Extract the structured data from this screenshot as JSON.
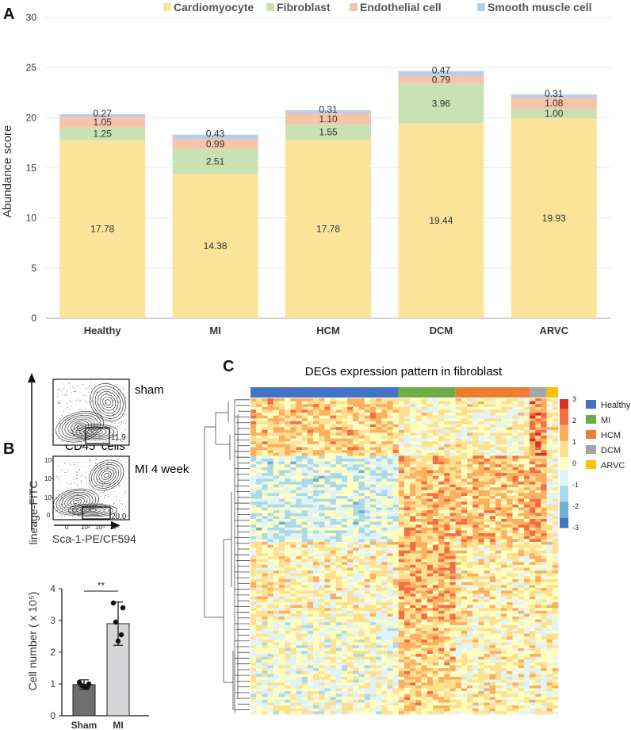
{
  "panels": {
    "a": "A",
    "b": "B",
    "c": "C"
  },
  "chart_data": [
    {
      "type": "bar",
      "stacked": true,
      "ylabel": "Abundance score",
      "ylim": [
        0,
        30
      ],
      "yticks": [
        0,
        5,
        10,
        15,
        20,
        25,
        30
      ],
      "grid": true,
      "legend_position": "top",
      "categories": [
        "Healthy",
        "MI",
        "HCM",
        "DCM",
        "ARVC"
      ],
      "series": [
        {
          "name": "Cardiomyocyte",
          "color": "#fbe49a",
          "values": [
            17.78,
            14.38,
            17.78,
            19.44,
            19.93
          ],
          "labels": [
            "17.78",
            "14.38",
            "17.78",
            "19.44",
            "19.93"
          ]
        },
        {
          "name": "Fibroblast",
          "color": "#c8e2b3",
          "values": [
            1.25,
            2.51,
            1.55,
            3.96,
            1.0
          ],
          "labels": [
            "1.25",
            "2.51",
            "1.55",
            "3.96",
            "1.00"
          ]
        },
        {
          "name": "Endothelial cell",
          "color": "#f6c4a8",
          "values": [
            1.05,
            0.99,
            1.1,
            0.79,
            1.08
          ],
          "labels": [
            "1.05",
            "0.99",
            "1.10",
            "0.79",
            "1.08"
          ]
        },
        {
          "name": "Smooth muscle cell",
          "color": "#b7cfe9",
          "values": [
            0.27,
            0.43,
            0.31,
            0.47,
            0.31
          ],
          "labels": [
            "0.27",
            "0.43",
            "0.31",
            "0.47",
            "0.31"
          ]
        }
      ]
    },
    {
      "type": "bar",
      "ylabel": "Cell number ( x 10⁵)",
      "ylim": [
        0,
        4
      ],
      "yticks": [
        0,
        1,
        2,
        3,
        4
      ],
      "categories": [
        "Sham",
        "MI"
      ],
      "values": [
        0.98,
        2.9
      ],
      "errors": [
        0.15,
        0.68
      ],
      "colors": [
        "#6e6e6e",
        "#d6d6d8"
      ],
      "points": [
        [
          1.05,
          1.0,
          0.95,
          0.9,
          0.93
        ],
        [
          3.55,
          3.4,
          2.95,
          2.55,
          2.35
        ]
      ],
      "significance": "**"
    },
    {
      "type": "heatmap",
      "title": "DEGs expression pattern in fibroblast",
      "scale_ticks": [
        3,
        2,
        1,
        0,
        -1,
        -2,
        -3
      ],
      "groups": [
        {
          "name": "Healthy",
          "color": "#4472c4",
          "columns": 26
        },
        {
          "name": "MI",
          "color": "#70ad47",
          "columns": 10
        },
        {
          "name": "HCM",
          "color": "#ed7d31",
          "columns": 13
        },
        {
          "name": "DCM",
          "color": "#a5a5a5",
          "columns": 3
        },
        {
          "name": "ARVC",
          "color": "#ffc000",
          "columns": 2
        }
      ],
      "cmap": [
        "#4575b4",
        "#74add1",
        "#abd9e9",
        "#e0f3f8",
        "#ffffbf",
        "#fee090",
        "#fdae61",
        "#f46d43",
        "#d73027"
      ]
    }
  ],
  "flow": {
    "title": "CD45",
    "title_sup": "-",
    "title_suffix": " cells",
    "ylabel": "lineage-FITC",
    "xlabel": "Sca-1-PE/CF594",
    "top_label": "sham",
    "top_gate": "11.9",
    "bottom_label": "MI 4 week",
    "bottom_gate": "20.0",
    "yticks": [
      "10⁵",
      "10⁴",
      "10³",
      "0"
    ],
    "xticks": [
      "0",
      "10³",
      "10⁴",
      "10⁵"
    ]
  }
}
